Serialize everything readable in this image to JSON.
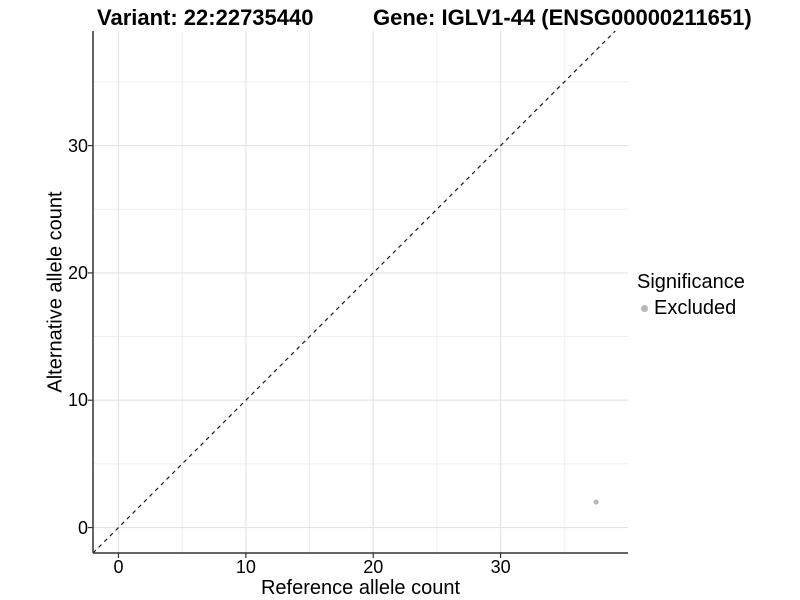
{
  "chart_data": {
    "type": "scatter",
    "title": {
      "variant": "Variant: 22:22735440",
      "gene": "Gene: IGLV1-44 (ENSG00000211651)"
    },
    "xlabel": "Reference allele count",
    "ylabel": "Alternative allele count",
    "x_ticks": [
      0,
      10,
      20,
      30
    ],
    "y_ticks": [
      0,
      10,
      20,
      30
    ],
    "x_minor_grid": [
      5,
      15,
      25,
      35
    ],
    "y_minor_grid": [
      5,
      15,
      25,
      35
    ],
    "xlim": [
      -2,
      40
    ],
    "ylim": [
      -2,
      39
    ],
    "grid": "on",
    "identity_line": {
      "equation": "y = x",
      "style": "dashed",
      "color": "#1a1a1a"
    },
    "series": [
      {
        "name": "Excluded",
        "color": "#b8b8b8",
        "points": [
          {
            "x": 37.5,
            "y": 2
          }
        ]
      }
    ],
    "legend": {
      "title": "Significance",
      "position": "right",
      "items": [
        {
          "label": "Excluded",
          "color": "#b8b8b8"
        }
      ]
    }
  },
  "colors": {
    "major_grid": "#e3e3e3",
    "minor_grid": "#efefef",
    "axis_line": "#333333",
    "tick_mark": "#333333",
    "text": "#000000"
  }
}
